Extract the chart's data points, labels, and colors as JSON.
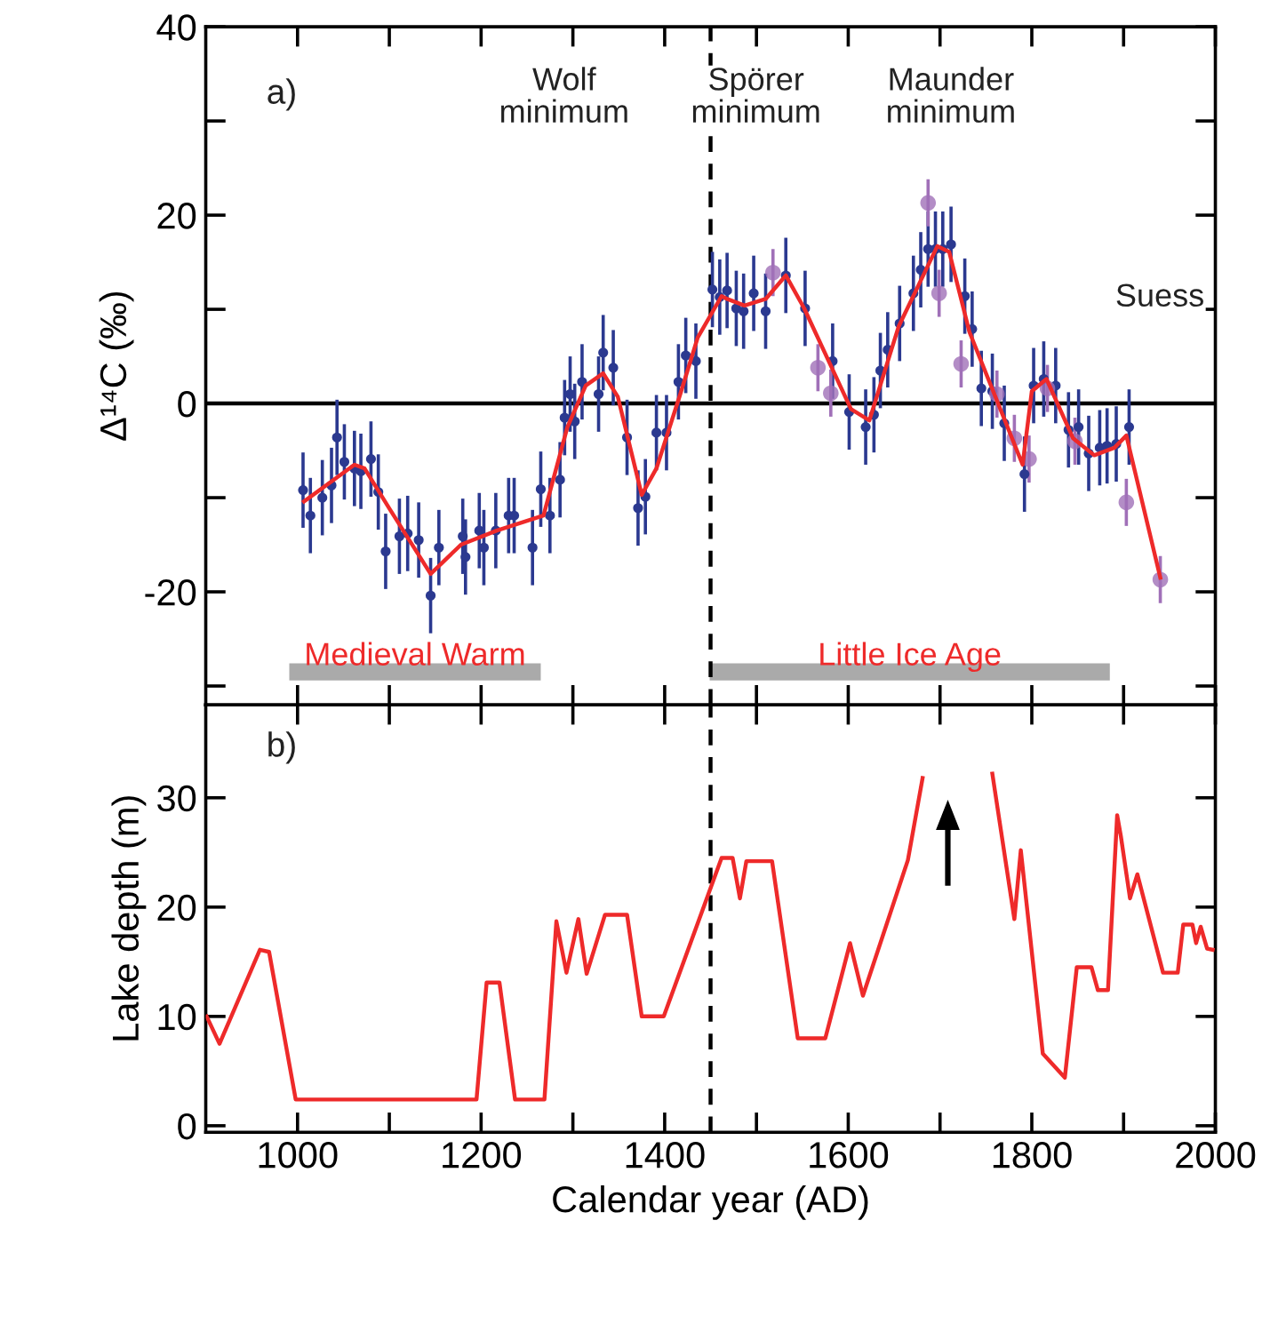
{
  "chart_data": [
    {
      "type": "scatter",
      "ylabel": "Δ¹⁴C (‰)",
      "xlim": [
        900,
        2000
      ],
      "ylim": [
        -32,
        40
      ],
      "xticks": [
        {
          "value": 1000,
          "label": null
        },
        {
          "value": 1100,
          "label": null
        },
        {
          "value": 1200,
          "label": null
        },
        {
          "value": 1300,
          "label": null
        },
        {
          "value": 1400,
          "label": null
        },
        {
          "value": 1500,
          "label": null
        },
        {
          "value": 1600,
          "label": null
        },
        {
          "value": 1700,
          "label": null
        },
        {
          "value": 1800,
          "label": null
        },
        {
          "value": 1900,
          "label": null
        },
        {
          "value": 2000,
          "label": null
        }
      ],
      "yticks": [
        {
          "value": -30,
          "label": null
        },
        -20,
        {
          "value": -10,
          "label": null
        },
        0,
        {
          "value": 10,
          "label": null
        },
        20,
        {
          "value": 30,
          "label": null
        },
        40
      ],
      "tick_labels": "y",
      "grid": false,
      "series": [
        {
          "type": "scatter",
          "color": "#2b3990",
          "marker": "circle",
          "x": [
            1006,
            1014,
            1027,
            1037,
            1043,
            1051,
            1062,
            1069,
            1080,
            1088,
            1096,
            1111,
            1120,
            1132,
            1145,
            1154,
            1180,
            1183,
            1198,
            1203,
            1216,
            1230,
            1236,
            1256,
            1265,
            1275,
            1286,
            1291,
            1297,
            1302,
            1310,
            1328,
            1333,
            1344,
            1359,
            1371,
            1379,
            1391,
            1402,
            1415,
            1423,
            1434,
            1452,
            1460,
            1468,
            1478,
            1486,
            1497,
            1510,
            1532,
            1553,
            1583,
            1601,
            1619,
            1628,
            1635,
            1643,
            1656,
            1671,
            1679,
            1687,
            1695,
            1703,
            1712,
            1727,
            1735,
            1745,
            1757,
            1770,
            1792,
            1802,
            1813,
            1826,
            1840,
            1851,
            1862,
            1874,
            1882,
            1892,
            1906
          ],
          "values": [
            -9.2,
            -11.9,
            -10,
            -8.7,
            -3.6,
            -6.2,
            -6.9,
            -7.2,
            -5.9,
            -9.4,
            -15.7,
            -14.1,
            -13.8,
            -14.5,
            -20.4,
            -15.3,
            -14.1,
            -16.3,
            -13.5,
            -15.3,
            -13.5,
            -11.9,
            -11.9,
            -15.3,
            -9.1,
            -11.9,
            -8.1,
            -1.5,
            1.0,
            -1.9,
            2.3,
            1.0,
            5.4,
            3.8,
            -3.6,
            -11.1,
            -9.9,
            -3.1,
            -3.1,
            2.3,
            5.1,
            4.5,
            12.1,
            11.3,
            12.0,
            10.1,
            9.8,
            11.7,
            9.8,
            13.6,
            10.1,
            4.5,
            -0.9,
            -2.5,
            -1.2,
            3.5,
            5.7,
            8.5,
            11.7,
            14.2,
            16.4,
            16.4,
            16.4,
            16.9,
            11.4,
            7.9,
            1.6,
            1.3,
            -2.1,
            -7.5,
            1.9,
            2.6,
            1.9,
            -2.8,
            -2.5,
            -5.3,
            -4.7,
            -4.5,
            -4.3,
            -2.5
          ],
          "errors": [
            4,
            4,
            4,
            4,
            4,
            4,
            4,
            4,
            4,
            4,
            4,
            4,
            4,
            4,
            4,
            4,
            4,
            4,
            4,
            4,
            4,
            4,
            4,
            4,
            4,
            4,
            4,
            4,
            4,
            4,
            4,
            4,
            4,
            4,
            4,
            4,
            4,
            4,
            4,
            4,
            4,
            4,
            4,
            4,
            4,
            4,
            4,
            4,
            4,
            4,
            4,
            4,
            4,
            4,
            4,
            4,
            4,
            4,
            4,
            4,
            4,
            4,
            4,
            4,
            4,
            4,
            4,
            4,
            4,
            4,
            4,
            4,
            4,
            4,
            4,
            4,
            4,
            4,
            4,
            4
          ]
        },
        {
          "type": "scatter",
          "color": "#a070b8",
          "marker": "circle",
          "x": [
            1518,
            1567,
            1581,
            1687,
            1699,
            1723,
            1762,
            1781,
            1797,
            1817,
            1847,
            1903,
            1940
          ],
          "values": [
            13.9,
            3.8,
            1.1,
            21.3,
            11.7,
            4.2,
            1.0,
            -3.7,
            -5.9,
            1.6,
            -4.0,
            -10.5,
            -18.7
          ],
          "errors": [
            2.5,
            2.5,
            2.5,
            2.5,
            2.5,
            2.5,
            2.5,
            2.5,
            2.5,
            2.5,
            2.5,
            2.5,
            2.5
          ]
        },
        {
          "type": "line",
          "color": "#ee2a2a",
          "x": [
            1007,
            1062,
            1073,
            1101,
            1145,
            1178,
            1217,
            1268,
            1294,
            1314,
            1333,
            1349,
            1375,
            1391,
            1417,
            1436,
            1462,
            1468,
            1487,
            1510,
            1532,
            1552,
            1603,
            1623,
            1655,
            1697,
            1710,
            1732,
            1790,
            1800,
            1816,
            1845,
            1868,
            1890,
            1903,
            1940
          ],
          "values": [
            -10.4,
            -6.5,
            -6.9,
            -11.3,
            -18.1,
            -15.0,
            -13.5,
            -11.9,
            -2.5,
            1.9,
            3.2,
            0.7,
            -9.7,
            -6.9,
            1.0,
            7.0,
            11.4,
            11.1,
            10.4,
            11.1,
            13.6,
            10.1,
            -0.6,
            -1.8,
            8.2,
            16.7,
            16.1,
            7.6,
            -6.5,
            1.3,
            2.6,
            -3.7,
            -5.5,
            -4.7,
            -3.4,
            -18.5
          ]
        },
        {
          "type": "line",
          "name": "Medieval Warm",
          "color": "#aaaaaa",
          "x": [
            991,
            1265
          ],
          "values": [
            -28.5,
            -28.5
          ]
        },
        {
          "type": "line",
          "name": "Little Ice Age",
          "color": "#aaaaaa",
          "x": [
            1449,
            1885
          ],
          "values": [
            -28.5,
            -28.5
          ]
        }
      ],
      "ref_lines": [
        {
          "axis": "x",
          "value": 1450,
          "color": "#000000",
          "line_style": "dashed"
        },
        {
          "axis": "y",
          "value": 0,
          "color": "#000000",
          "line_style": "solid"
        }
      ],
      "annotations": [
        "a)",
        "Wolf\nminimum",
        "Spörer\nminimum",
        "Maunder\nminimum",
        "Suess"
      ]
    },
    {
      "type": "line",
      "xlabel": "Calendar year (AD)",
      "ylabel": "Lake depth (m)",
      "xlim": [
        900,
        2000
      ],
      "ylim": [
        -0.6,
        38.5
      ],
      "xticks": [
        1000,
        {
          "value": 1100,
          "label": null
        },
        1200,
        {
          "value": 1300,
          "label": null
        },
        1400,
        {
          "value": 1500,
          "label": null
        },
        1600,
        {
          "value": 1700,
          "label": null
        },
        1800,
        {
          "value": 1900,
          "label": null
        },
        2000
      ],
      "yticks": [
        0,
        10,
        20,
        30
      ],
      "grid": false,
      "series": [
        {
          "color": "#ee2a2a",
          "x": [
            901,
            915,
            959,
            969,
            998,
            1195,
            1206,
            1220,
            1237,
            1269,
            1282,
            1293,
            1306,
            1315,
            1335,
            1359,
            1375,
            1399,
            1462,
            1474,
            1482,
            1489,
            1517,
            1545,
            1575,
            1602,
            1616,
            1665,
            1681,
            1719,
            1757,
            1781,
            1788,
            1812,
            1836,
            1849,
            1865,
            1872,
            1883,
            1893,
            1897,
            1907,
            1915,
            1943,
            1959,
            1965,
            1975,
            1979,
            1984,
            1991,
            1997
          ],
          "values": [
            10.0,
            7.5,
            16.1,
            15.9,
            2.4,
            2.4,
            13.1,
            13.1,
            2.4,
            2.4,
            18.7,
            14.0,
            18.9,
            13.9,
            19.3,
            19.3,
            10.0,
            10.0,
            24.5,
            24.5,
            20.8,
            24.2,
            24.2,
            8.0,
            8.0,
            16.7,
            11.9,
            24.3,
            31.8,
            null,
            32.2,
            18.9,
            25.2,
            6.6,
            4.4,
            14.5,
            14.5,
            12.4,
            12.4,
            28.4,
            26.5,
            20.8,
            23.0,
            14.0,
            14.0,
            18.4,
            18.4,
            16.7,
            18.2,
            16.2,
            16.1
          ]
        }
      ],
      "ref_lines": [
        {
          "axis": "x",
          "value": 1450,
          "color": "#000000",
          "line_style": "dashed"
        }
      ],
      "annotations": [
        "b)"
      ]
    }
  ]
}
